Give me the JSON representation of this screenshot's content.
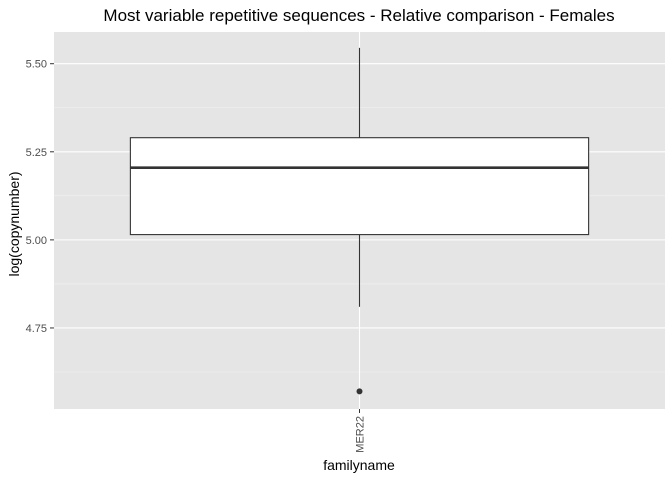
{
  "chart_data": {
    "type": "boxplot",
    "title": "Most variable repetitive sequences - Relative comparison - Females",
    "xlabel": "familyname",
    "ylabel": "log(copynumber)",
    "categories": [
      "MER22"
    ],
    "boxes": [
      {
        "category": "MER22",
        "whisker_low": 4.81,
        "q1": 5.015,
        "median": 5.205,
        "q3": 5.29,
        "whisker_high": 5.545,
        "outliers": [
          4.57
        ]
      }
    ],
    "ylim": [
      4.52,
      5.59
    ],
    "yticks": [
      4.75,
      5.0,
      5.25,
      5.5
    ],
    "ytick_labels": [
      "4.75",
      "5.00",
      "5.25",
      "5.50"
    ],
    "grid": true,
    "colors": {
      "panel_background": "#e5e5e5",
      "grid_major": "#ffffff",
      "grid_minor": "#f2f2f2",
      "box_fill": "#ffffff",
      "box_line": "#333333",
      "tick_text": "#4d4d4d"
    }
  }
}
